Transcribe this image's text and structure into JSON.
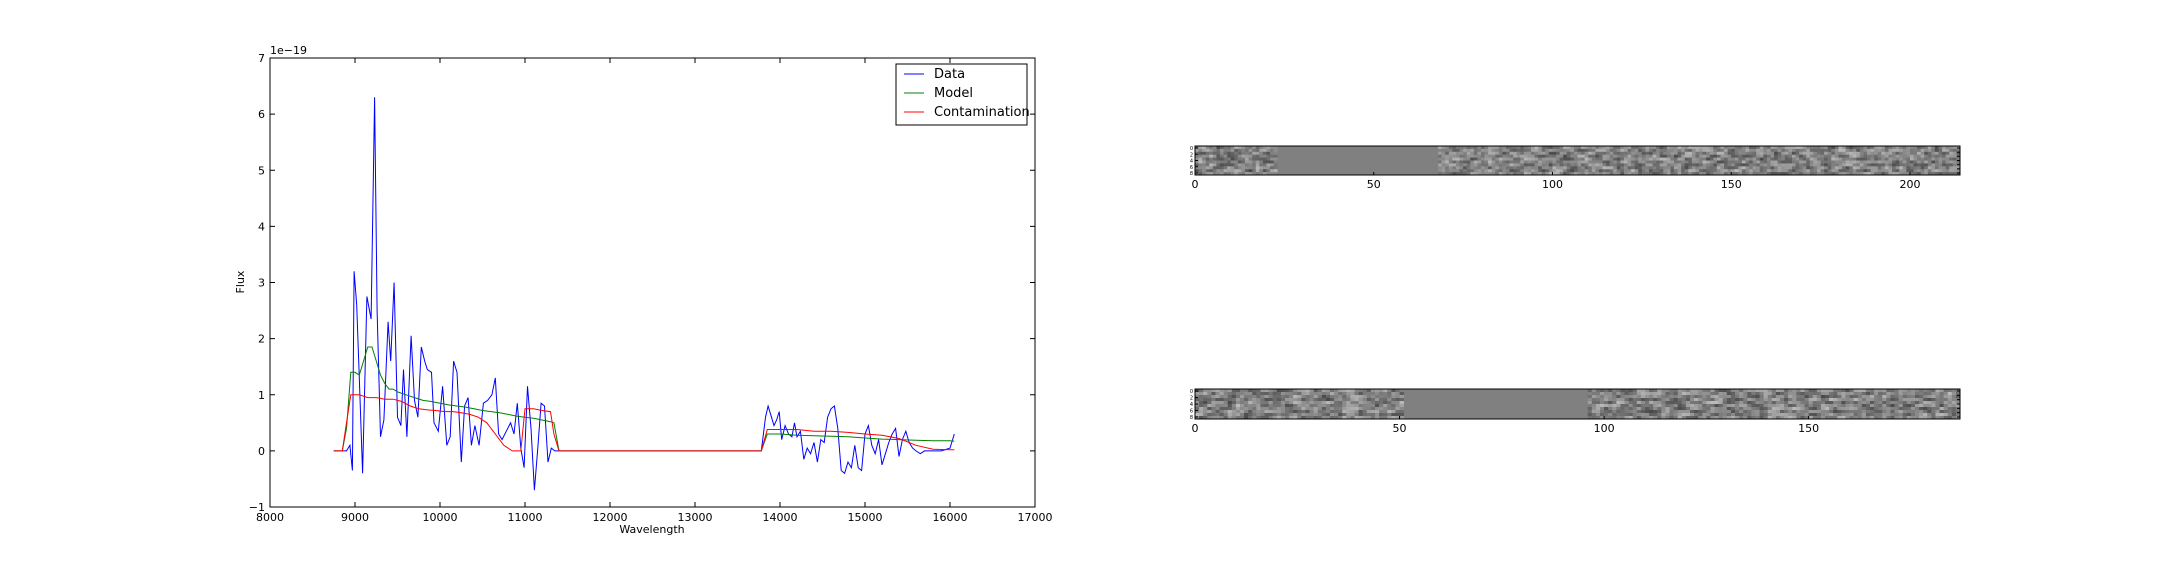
{
  "chart_data": [
    {
      "type": "line",
      "xlabel": "Wavelength",
      "ylabel": "Flux",
      "offset_label": "1e−19",
      "xlim": [
        8000,
        17000
      ],
      "ylim": [
        -1,
        7
      ],
      "x_ticks": [
        "8000",
        "9000",
        "10000",
        "11000",
        "12000",
        "13000",
        "14000",
        "15000",
        "16000",
        "17000"
      ],
      "y_ticks": [
        "−1",
        "0",
        "1",
        "2",
        "3",
        "4",
        "5",
        "6",
        "7"
      ],
      "legend_position": "top-right",
      "grid": false,
      "series": [
        {
          "name": "Data",
          "color": "#0000ff",
          "points": [
            [
              8750,
              0
            ],
            [
              8800,
              0
            ],
            [
              8850,
              0
            ],
            [
              8900,
              0
            ],
            [
              8940,
              0.1
            ],
            [
              8970,
              -0.35
            ],
            [
              8990,
              3.2
            ],
            [
              9020,
              2.6
            ],
            [
              9050,
              1.3
            ],
            [
              9090,
              -0.4
            ],
            [
              9140,
              2.75
            ],
            [
              9190,
              2.35
            ],
            [
              9230,
              6.3
            ],
            [
              9260,
              2.5
            ],
            [
              9300,
              0.25
            ],
            [
              9340,
              0.55
            ],
            [
              9390,
              2.3
            ],
            [
              9420,
              1.6
            ],
            [
              9460,
              3.0
            ],
            [
              9500,
              0.6
            ],
            [
              9540,
              0.45
            ],
            [
              9570,
              1.45
            ],
            [
              9610,
              0.25
            ],
            [
              9660,
              2.05
            ],
            [
              9700,
              0.9
            ],
            [
              9740,
              0.6
            ],
            [
              9780,
              1.85
            ],
            [
              9820,
              1.6
            ],
            [
              9850,
              1.45
            ],
            [
              9900,
              1.4
            ],
            [
              9930,
              0.5
            ],
            [
              9980,
              0.35
            ],
            [
              10030,
              1.15
            ],
            [
              10080,
              0.1
            ],
            [
              10120,
              0.25
            ],
            [
              10160,
              1.6
            ],
            [
              10200,
              1.4
            ],
            [
              10250,
              -0.2
            ],
            [
              10290,
              0.8
            ],
            [
              10330,
              0.95
            ],
            [
              10370,
              0.1
            ],
            [
              10410,
              0.45
            ],
            [
              10460,
              0.1
            ],
            [
              10510,
              0.85
            ],
            [
              10560,
              0.9
            ],
            [
              10610,
              1.0
            ],
            [
              10650,
              1.3
            ],
            [
              10690,
              0.3
            ],
            [
              10730,
              0.2
            ],
            [
              10780,
              0.35
            ],
            [
              10830,
              0.5
            ],
            [
              10870,
              0.3
            ],
            [
              10910,
              0.85
            ],
            [
              10950,
              0.05
            ],
            [
              10990,
              -0.3
            ],
            [
              11030,
              1.15
            ],
            [
              11070,
              0.4
            ],
            [
              11110,
              -0.7
            ],
            [
              11150,
              0.05
            ],
            [
              11190,
              0.85
            ],
            [
              11230,
              0.8
            ],
            [
              11270,
              -0.2
            ],
            [
              11310,
              0.05
            ],
            [
              11350,
              0.0
            ],
            [
              11400,
              0.0
            ],
            [
              11500,
              0.0
            ],
            [
              12000,
              0.0
            ],
            [
              12500,
              0.0
            ],
            [
              13000,
              0.0
            ],
            [
              13500,
              0.0
            ],
            [
              13780,
              0.0
            ],
            [
              13830,
              0.6
            ],
            [
              13860,
              0.8
            ],
            [
              13900,
              0.6
            ],
            [
              13930,
              0.45
            ],
            [
              13960,
              0.55
            ],
            [
              13990,
              0.7
            ],
            [
              14020,
              0.2
            ],
            [
              14060,
              0.45
            ],
            [
              14100,
              0.3
            ],
            [
              14140,
              0.25
            ],
            [
              14170,
              0.5
            ],
            [
              14200,
              0.25
            ],
            [
              14240,
              0.35
            ],
            [
              14280,
              -0.15
            ],
            [
              14320,
              0.05
            ],
            [
              14360,
              -0.05
            ],
            [
              14400,
              0.15
            ],
            [
              14440,
              -0.2
            ],
            [
              14480,
              0.2
            ],
            [
              14520,
              0.15
            ],
            [
              14560,
              0.6
            ],
            [
              14600,
              0.75
            ],
            [
              14640,
              0.8
            ],
            [
              14680,
              0.4
            ],
            [
              14720,
              -0.35
            ],
            [
              14760,
              -0.4
            ],
            [
              14800,
              -0.2
            ],
            [
              14840,
              -0.3
            ],
            [
              14880,
              0.1
            ],
            [
              14920,
              -0.3
            ],
            [
              14960,
              -0.35
            ],
            [
              15000,
              0.3
            ],
            [
              15040,
              0.45
            ],
            [
              15080,
              0.1
            ],
            [
              15120,
              -0.05
            ],
            [
              15160,
              0.2
            ],
            [
              15200,
              -0.25
            ],
            [
              15240,
              -0.05
            ],
            [
              15280,
              0.15
            ],
            [
              15320,
              0.3
            ],
            [
              15360,
              0.4
            ],
            [
              15400,
              -0.1
            ],
            [
              15440,
              0.2
            ],
            [
              15480,
              0.35
            ],
            [
              15520,
              0.15
            ],
            [
              15560,
              0.05
            ],
            [
              15600,
              0.0
            ],
            [
              15650,
              -0.05
            ],
            [
              15700,
              0.0
            ],
            [
              15800,
              0.0
            ],
            [
              15900,
              0.0
            ],
            [
              16000,
              0.05
            ],
            [
              16050,
              0.3
            ]
          ]
        },
        {
          "name": "Model",
          "color": "#008000",
          "points": [
            [
              8750,
              0
            ],
            [
              8850,
              0
            ],
            [
              8900,
              0.4
            ],
            [
              8950,
              1.4
            ],
            [
              9000,
              1.4
            ],
            [
              9050,
              1.35
            ],
            [
              9100,
              1.6
            ],
            [
              9150,
              1.85
            ],
            [
              9200,
              1.85
            ],
            [
              9250,
              1.6
            ],
            [
              9300,
              1.35
            ],
            [
              9350,
              1.2
            ],
            [
              9400,
              1.1
            ],
            [
              9450,
              1.1
            ],
            [
              9500,
              1.05
            ],
            [
              9600,
              1.0
            ],
            [
              9700,
              0.95
            ],
            [
              9800,
              0.9
            ],
            [
              9900,
              0.88
            ],
            [
              10000,
              0.85
            ],
            [
              10100,
              0.82
            ],
            [
              10200,
              0.8
            ],
            [
              10300,
              0.78
            ],
            [
              10400,
              0.75
            ],
            [
              10500,
              0.72
            ],
            [
              10600,
              0.7
            ],
            [
              10700,
              0.68
            ],
            [
              10800,
              0.65
            ],
            [
              10900,
              0.62
            ],
            [
              11000,
              0.6
            ],
            [
              11100,
              0.58
            ],
            [
              11200,
              0.55
            ],
            [
              11300,
              0.52
            ],
            [
              11340,
              0.5
            ],
            [
              11400,
              0.0
            ],
            [
              12000,
              0.0
            ],
            [
              13000,
              0.0
            ],
            [
              13780,
              0.0
            ],
            [
              13850,
              0.3
            ],
            [
              14000,
              0.3
            ],
            [
              14200,
              0.28
            ],
            [
              14400,
              0.27
            ],
            [
              14600,
              0.26
            ],
            [
              14800,
              0.25
            ],
            [
              15000,
              0.23
            ],
            [
              15200,
              0.21
            ],
            [
              15400,
              0.2
            ],
            [
              15600,
              0.19
            ],
            [
              15800,
              0.18
            ],
            [
              16000,
              0.18
            ],
            [
              16050,
              0.17
            ]
          ]
        },
        {
          "name": "Contamination",
          "color": "#ff0000",
          "points": [
            [
              8750,
              0
            ],
            [
              8850,
              0
            ],
            [
              8900,
              0.5
            ],
            [
              8950,
              1.0
            ],
            [
              9050,
              1.0
            ],
            [
              9150,
              0.95
            ],
            [
              9250,
              0.95
            ],
            [
              9350,
              0.92
            ],
            [
              9450,
              0.92
            ],
            [
              9550,
              0.88
            ],
            [
              9650,
              0.8
            ],
            [
              9750,
              0.75
            ],
            [
              9850,
              0.73
            ],
            [
              9950,
              0.72
            ],
            [
              10050,
              0.7
            ],
            [
              10150,
              0.7
            ],
            [
              10250,
              0.68
            ],
            [
              10350,
              0.65
            ],
            [
              10450,
              0.6
            ],
            [
              10550,
              0.5
            ],
            [
              10650,
              0.3
            ],
            [
              10750,
              0.1
            ],
            [
              10850,
              0.0
            ],
            [
              10950,
              0.0
            ],
            [
              11000,
              0.75
            ],
            [
              11100,
              0.75
            ],
            [
              11200,
              0.72
            ],
            [
              11300,
              0.7
            ],
            [
              11340,
              0.3
            ],
            [
              11400,
              0.0
            ],
            [
              12000,
              0.0
            ],
            [
              13000,
              0.0
            ],
            [
              13780,
              0.0
            ],
            [
              13850,
              0.38
            ],
            [
              14000,
              0.38
            ],
            [
              14200,
              0.38
            ],
            [
              14400,
              0.35
            ],
            [
              14600,
              0.35
            ],
            [
              14800,
              0.33
            ],
            [
              15000,
              0.3
            ],
            [
              15200,
              0.28
            ],
            [
              15400,
              0.22
            ],
            [
              15600,
              0.1
            ],
            [
              15800,
              0.03
            ],
            [
              16000,
              0.02
            ],
            [
              16050,
              0.02
            ]
          ]
        }
      ]
    },
    {
      "type": "heatmap",
      "x_ticks": [
        "0",
        "50",
        "100",
        "150",
        "200"
      ],
      "xlim": [
        0,
        214
      ],
      "y_ticks": [
        "0",
        "2",
        "4",
        "6",
        "8"
      ],
      "blank_ranges": [
        [
          23,
          68
        ]
      ],
      "colormap": "gray"
    },
    {
      "type": "heatmap",
      "x_ticks": [
        "0",
        "50",
        "100",
        "150"
      ],
      "xlim": [
        0,
        187
      ],
      "y_ticks": [
        "0",
        "2",
        "4",
        "6",
        "8"
      ],
      "blank_ranges": [
        [
          51,
          96
        ]
      ],
      "colormap": "gray"
    }
  ]
}
